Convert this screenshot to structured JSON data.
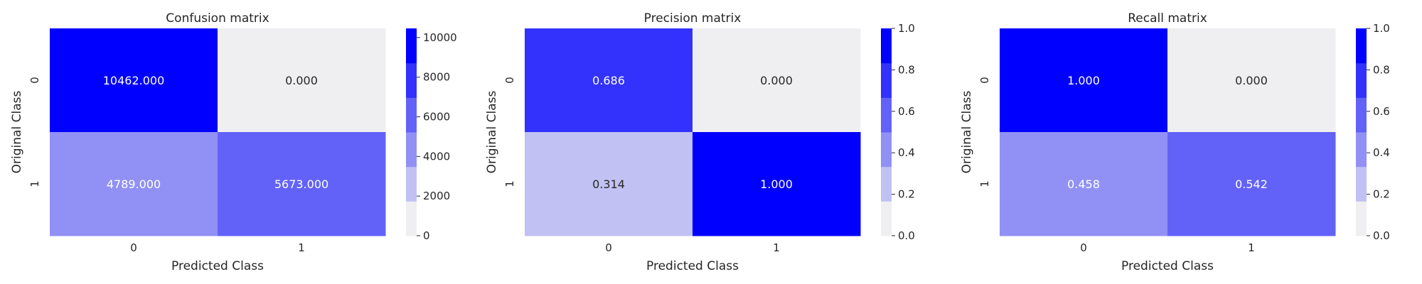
{
  "chart_data": [
    {
      "type": "heatmap",
      "title": "Confusion matrix",
      "xlabel": "Predicted Class",
      "ylabel": "Original Class",
      "x_categories": [
        "0",
        "1"
      ],
      "y_categories": [
        "0",
        "1"
      ],
      "values": [
        [
          10462,
          0
        ],
        [
          4789,
          5673
        ]
      ],
      "annotations": [
        [
          "10462.000",
          "0.000"
        ],
        [
          "4789.000",
          "5673.000"
        ]
      ],
      "colorbar": {
        "min": 0,
        "max": 10462,
        "ticks": [
          0,
          2000,
          4000,
          6000,
          8000,
          10000
        ],
        "tick_labels": [
          "0",
          "2000",
          "4000",
          "6000",
          "8000",
          "10000"
        ]
      }
    },
    {
      "type": "heatmap",
      "title": "Precision matrix",
      "xlabel": "Predicted Class",
      "ylabel": "Original Class",
      "x_categories": [
        "0",
        "1"
      ],
      "y_categories": [
        "0",
        "1"
      ],
      "values": [
        [
          0.686,
          0.0
        ],
        [
          0.314,
          1.0
        ]
      ],
      "annotations": [
        [
          "0.686",
          "0.000"
        ],
        [
          "0.314",
          "1.000"
        ]
      ],
      "colorbar": {
        "min": 0,
        "max": 1,
        "ticks": [
          0,
          0.2,
          0.4,
          0.6,
          0.8,
          1.0
        ],
        "tick_labels": [
          "0.0",
          "0.2",
          "0.4",
          "0.6",
          "0.8",
          "1.0"
        ]
      }
    },
    {
      "type": "heatmap",
      "title": "Recall matrix",
      "xlabel": "Predicted Class",
      "ylabel": "Original Class",
      "x_categories": [
        "0",
        "1"
      ],
      "y_categories": [
        "0",
        "1"
      ],
      "values": [
        [
          1.0,
          0.0
        ],
        [
          0.458,
          0.542
        ]
      ],
      "annotations": [
        [
          "1.000",
          "0.000"
        ],
        [
          "0.458",
          "0.542"
        ]
      ],
      "colorbar": {
        "min": 0,
        "max": 1,
        "ticks": [
          0,
          0.2,
          0.4,
          0.6,
          0.8,
          1.0
        ],
        "tick_labels": [
          "0.0",
          "0.2",
          "0.4",
          "0.6",
          "0.8",
          "1.0"
        ]
      }
    }
  ],
  "colormap": [
    "#efeff2",
    "#c1c1f3",
    "#9191f5",
    "#6262f9",
    "#3232fc",
    "#0000ff"
  ],
  "text_colors": {
    "dark": "#262626",
    "light": "#ffffff"
  }
}
